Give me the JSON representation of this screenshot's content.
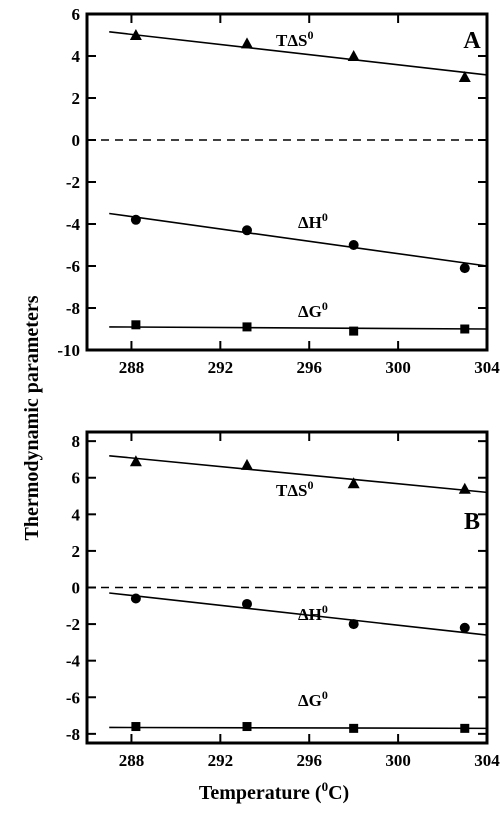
{
  "chart_data": [
    {
      "type": "scatter",
      "panel_label": "A",
      "xlim": [
        286,
        304
      ],
      "ylim": [
        -10,
        6
      ],
      "xticks": [
        288,
        292,
        296,
        300,
        304
      ],
      "yticks": [
        6,
        4,
        2,
        0,
        -2,
        -4,
        -6,
        -8,
        -10
      ],
      "zero_line": true,
      "series": [
        {
          "label": "TΔS",
          "label_sup": "0",
          "marker": "triangle",
          "x": [
            288.2,
            293.2,
            298,
            303
          ],
          "y": [
            5.0,
            4.6,
            4.0,
            3.0
          ],
          "fit": {
            "x": [
              287,
              304
            ],
            "y": [
              5.15,
              3.1
            ]
          }
        },
        {
          "label": "ΔH",
          "label_sup": "0",
          "marker": "circle",
          "x": [
            288.2,
            293.2,
            298,
            303
          ],
          "y": [
            -3.8,
            -4.3,
            -5.0,
            -6.1
          ],
          "fit": {
            "x": [
              287,
              304
            ],
            "y": [
              -3.5,
              -6.0
            ]
          }
        },
        {
          "label": "ΔG",
          "label_sup": "0",
          "marker": "square",
          "x": [
            288.2,
            293.2,
            298,
            303
          ],
          "y": [
            -8.8,
            -8.9,
            -9.1,
            -9.0
          ],
          "fit": {
            "x": [
              287,
              304
            ],
            "y": [
              -8.9,
              -9.0
            ]
          }
        }
      ]
    },
    {
      "type": "scatter",
      "panel_label": "B",
      "xlim": [
        286,
        304
      ],
      "ylim": [
        -8.5,
        8.5
      ],
      "xticks": [
        288,
        292,
        296,
        300,
        304
      ],
      "yticks": [
        8,
        6,
        4,
        2,
        0,
        -2,
        -4,
        -6,
        -8
      ],
      "zero_line": true,
      "series": [
        {
          "label": "TΔS",
          "label_sup": "0",
          "marker": "triangle",
          "x": [
            288.2,
            293.2,
            298,
            303
          ],
          "y": [
            6.9,
            6.7,
            5.7,
            5.4
          ],
          "fit": {
            "x": [
              287,
              304
            ],
            "y": [
              7.2,
              5.2
            ]
          }
        },
        {
          "label": "ΔH",
          "label_sup": "0",
          "marker": "circle",
          "x": [
            288.2,
            293.2,
            298,
            303
          ],
          "y": [
            -0.6,
            -0.9,
            -2.0,
            -2.2
          ],
          "fit": {
            "x": [
              287,
              304
            ],
            "y": [
              -0.3,
              -2.6
            ]
          }
        },
        {
          "label": "ΔG",
          "label_sup": "0",
          "marker": "square",
          "x": [
            288.2,
            293.2,
            298,
            303
          ],
          "y": [
            -7.6,
            -7.6,
            -7.7,
            -7.7
          ],
          "fit": {
            "x": [
              287,
              304
            ],
            "y": [
              -7.65,
              -7.7
            ]
          }
        }
      ]
    }
  ],
  "axes": {
    "ylabel": "Thermodynamic parameters",
    "xlabel_main": "Temperature (",
    "xlabel_sup": "0",
    "xlabel_end": "C)"
  }
}
